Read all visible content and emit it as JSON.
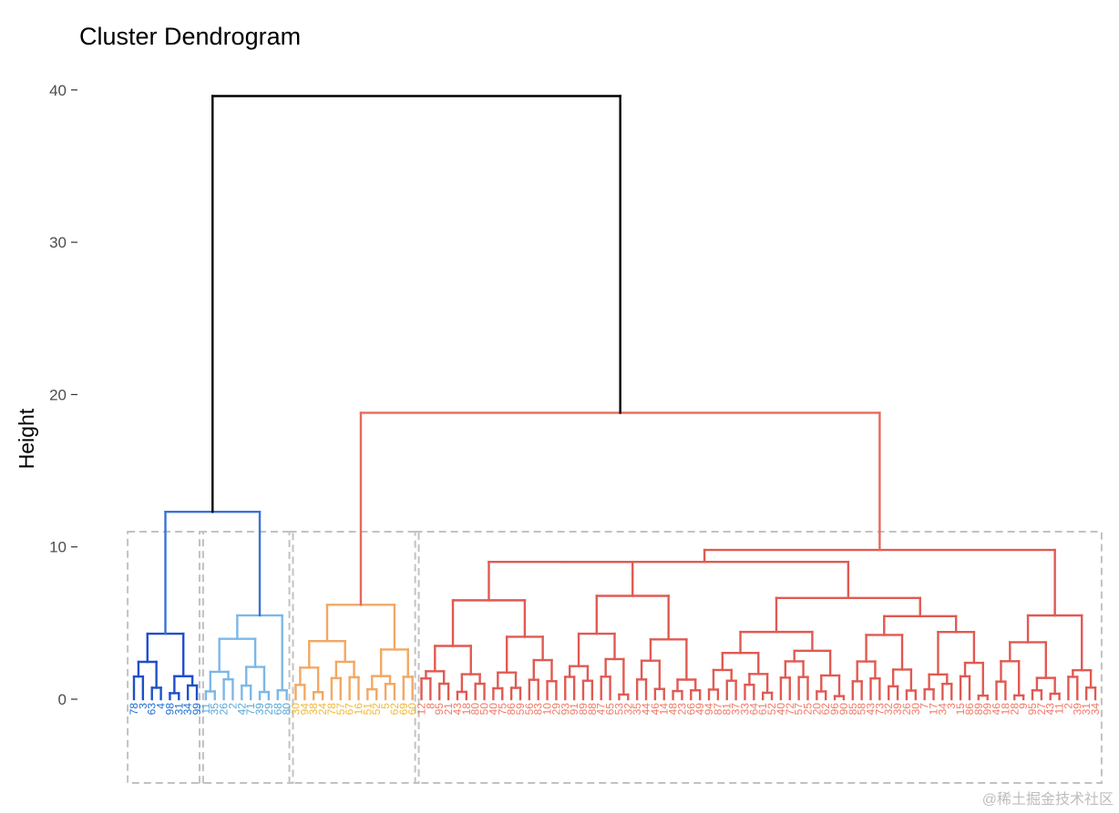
{
  "chart_data": {
    "type": "dendrogram",
    "title": "Cluster Dendrogram",
    "xlabel": "",
    "ylabel": "Height",
    "ylim": [
      -5.5,
      40.5
    ],
    "yticks": [
      0,
      10,
      20,
      30,
      40
    ],
    "ytick_labels": [
      "0",
      "10",
      "20",
      "30",
      "40"
    ],
    "root_height": 39.6,
    "clusters": [
      {
        "name": "cluster-1",
        "color": "#1f4fc9",
        "label_color": "#1f6fd1",
        "merge_height": 4.3,
        "leaves": [
          "78",
          "3",
          "63",
          "4",
          "98",
          "31",
          "34",
          "99"
        ]
      },
      {
        "name": "cluster-2",
        "color": "#7cb7e8",
        "label_color": "#5aa8d8",
        "merge_height": 5.5,
        "leaves": [
          "11",
          "35",
          "26",
          "2",
          "42",
          "71",
          "39",
          "29",
          "68",
          "80"
        ]
      },
      {
        "name": "cluster-3",
        "color": "#f2a863",
        "label_color": "#f0b93a",
        "merge_height": 6.2,
        "leaves": [
          "30",
          "94",
          "38",
          "24",
          "78",
          "57",
          "67",
          "16",
          "51",
          "52",
          "5",
          "62",
          "69",
          "60"
        ]
      },
      {
        "name": "cluster-4",
        "color": "#e05a52",
        "label_color": "#f07a68",
        "merge_height": 9.8,
        "leaves": [
          "12",
          "8",
          "95",
          "21",
          "43",
          "18",
          "80",
          "50",
          "40",
          "75",
          "86",
          "59",
          "56",
          "83",
          "10",
          "29",
          "93",
          "91",
          "89",
          "88",
          "47",
          "65",
          "53",
          "32",
          "35",
          "44",
          "46",
          "14",
          "48",
          "23",
          "66",
          "49",
          "94",
          "87",
          "81",
          "37",
          "33",
          "64",
          "61",
          "52",
          "40",
          "72",
          "57",
          "25",
          "20",
          "62",
          "96",
          "90",
          "85",
          "58",
          "43",
          "73",
          "32",
          "39",
          "26",
          "30",
          "7",
          "17",
          "34",
          "3",
          "15",
          "86",
          "89",
          "99",
          "46",
          "18",
          "28",
          "9",
          "95",
          "27",
          "43",
          "11",
          "2",
          "39",
          "31",
          "34"
        ]
      }
    ],
    "merges": [
      {
        "left": "cluster-1",
        "right": "cluster-2",
        "height": 12.3
      },
      {
        "left": "cluster-3",
        "right": "cluster-4",
        "height": 18.8
      },
      {
        "left": "blue-group",
        "right": "warm-group",
        "height": 39.6
      }
    ],
    "rect_bounds": [
      -5.5,
      11.0
    ],
    "line_colors": {
      "root": "#000000",
      "blue_group": "#3a72d6",
      "warm_group": "#e56a5a"
    }
  },
  "watermark": "@稀土掘金技术社区"
}
